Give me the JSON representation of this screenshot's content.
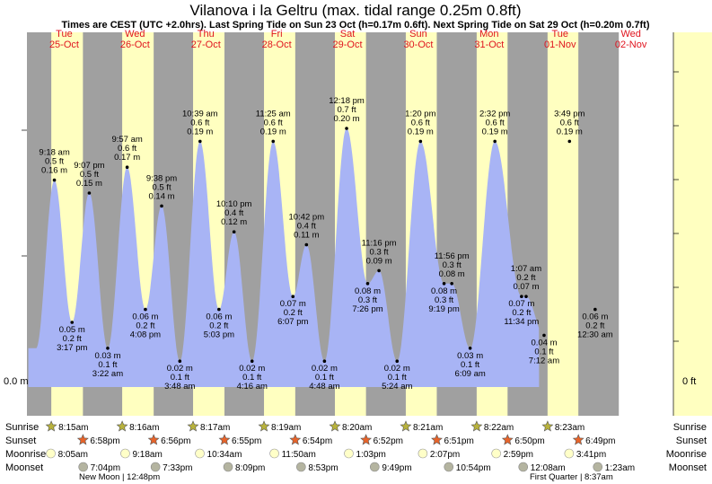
{
  "header": {
    "title": "Vilanova i la Geltru (max. tidal range 0.25m 0.8ft)",
    "subtitle": "Times are CEST (UTC +2.0hrs). Last Spring Tide on Sun 23 Oct (h=0.17m 0.6ft). Next Spring Tide on Sat 29 Oct (h=0.20m 0.7ft)"
  },
  "colors": {
    "night": "#a0a0a0",
    "day": "#ffffc0",
    "tide": "#a8b4f5",
    "day_label": "#e0141e",
    "sunrise_star": "#b8b23c",
    "sunset_star": "#e8642a",
    "moonrise": "#ffffc8",
    "moonset": "#b4b4a0"
  },
  "axis": {
    "left_label": "0.0 m",
    "right_label": "0 ft"
  },
  "chart_data": {
    "type": "area",
    "title": "Vilanova i la Geltru (max. tidal range 0.25m 0.8ft)",
    "days": [
      {
        "dow": "Tue",
        "date": "25-Oct"
      },
      {
        "dow": "Wed",
        "date": "26-Oct"
      },
      {
        "dow": "Thu",
        "date": "27-Oct"
      },
      {
        "dow": "Fri",
        "date": "28-Oct"
      },
      {
        "dow": "Sat",
        "date": "29-Oct"
      },
      {
        "dow": "Sun",
        "date": "30-Oct"
      },
      {
        "dow": "Mon",
        "date": "31-Oct"
      },
      {
        "dow": "Tue",
        "date": "01-Nov"
      },
      {
        "dow": "Wed",
        "date": "02-Nov"
      }
    ],
    "tides": [
      {
        "type": "high",
        "time": "9:18 am",
        "ft": "0.5 ft",
        "m": "0.16 m"
      },
      {
        "type": "low",
        "time": "3:17 pm",
        "ft": "0.2 ft",
        "m": "0.05 m"
      },
      {
        "type": "high",
        "time": "9:07 pm",
        "ft": "0.5 ft",
        "m": "0.15 m"
      },
      {
        "type": "low",
        "time": "3:22 am",
        "ft": "0.1 ft",
        "m": "0.03 m"
      },
      {
        "type": "high",
        "time": "9:57 am",
        "ft": "0.6 ft",
        "m": "0.17 m"
      },
      {
        "type": "low",
        "time": "4:08 pm",
        "ft": "0.2 ft",
        "m": "0.06 m"
      },
      {
        "type": "high",
        "time": "9:38 pm",
        "ft": "0.5 ft",
        "m": "0.14 m"
      },
      {
        "type": "low",
        "time": "3:48 am",
        "ft": "0.1 ft",
        "m": "0.02 m"
      },
      {
        "type": "high",
        "time": "10:39 am",
        "ft": "0.6 ft",
        "m": "0.19 m"
      },
      {
        "type": "low",
        "time": "5:03 pm",
        "ft": "0.2 ft",
        "m": "0.06 m"
      },
      {
        "type": "high",
        "time": "10:10 pm",
        "ft": "0.4 ft",
        "m": "0.12 m"
      },
      {
        "type": "low",
        "time": "4:16 am",
        "ft": "0.1 ft",
        "m": "0.02 m"
      },
      {
        "type": "high",
        "time": "11:25 am",
        "ft": "0.6 ft",
        "m": "0.19 m"
      },
      {
        "type": "low",
        "time": "6:07 pm",
        "ft": "0.2 ft",
        "m": "0.07 m"
      },
      {
        "type": "high",
        "time": "10:42 pm",
        "ft": "0.4 ft",
        "m": "0.11 m"
      },
      {
        "type": "low",
        "time": "4:48 am",
        "ft": "0.1 ft",
        "m": "0.02 m"
      },
      {
        "type": "high",
        "time": "12:18 pm",
        "ft": "0.7 ft",
        "m": "0.20 m"
      },
      {
        "type": "low",
        "time": "7:26 pm",
        "ft": "0.3 ft",
        "m": "0.08 m"
      },
      {
        "type": "high",
        "time": "11:16 pm",
        "ft": "0.3 ft",
        "m": "0.09 m"
      },
      {
        "type": "low",
        "time": "5:24 am",
        "ft": "0.1 ft",
        "m": "0.02 m"
      },
      {
        "type": "high",
        "time": "1:20 pm",
        "ft": "0.6 ft",
        "m": "0.19 m"
      },
      {
        "type": "low",
        "time": "9:19 pm",
        "ft": "0.3 ft",
        "m": "0.08 m"
      },
      {
        "type": "high",
        "time": "11:56 pm",
        "ft": "0.3 ft",
        "m": "0.08 m"
      },
      {
        "type": "low",
        "time": "6:09 am",
        "ft": "0.1 ft",
        "m": "0.03 m"
      },
      {
        "type": "high",
        "time": "2:32 pm",
        "ft": "0.6 ft",
        "m": "0.19 m"
      },
      {
        "type": "low",
        "time": "11:34 pm",
        "ft": "0.2 ft",
        "m": "0.07 m"
      },
      {
        "type": "high",
        "time": "1:07 am",
        "ft": "0.2 ft",
        "m": "0.07 m"
      },
      {
        "type": "low",
        "time": "7:12 am",
        "ft": "0.1 ft",
        "m": "0.04 m"
      },
      {
        "type": "high",
        "time": "3:49 pm",
        "ft": "0.6 ft",
        "m": "0.19 m"
      },
      {
        "type": "low",
        "time": "12:30 am",
        "ft": "0.2 ft",
        "m": "0.06 m"
      }
    ]
  },
  "rows": {
    "sunrise": "Sunrise",
    "sunset": "Sunset",
    "moonrise": "Moonrise",
    "moonset": "Moonset"
  },
  "sunrise_times": [
    "8:15am",
    "8:16am",
    "8:17am",
    "8:19am",
    "8:20am",
    "8:21am",
    "8:22am",
    "8:23am"
  ],
  "sunset_times": [
    "6:58pm",
    "6:56pm",
    "6:55pm",
    "6:54pm",
    "6:52pm",
    "6:51pm",
    "6:50pm",
    "6:49pm"
  ],
  "moonrise_times": [
    "8:05am",
    "9:18am",
    "10:34am",
    "11:50am",
    "1:03pm",
    "2:07pm",
    "2:59pm",
    "3:41pm"
  ],
  "moonset_times": [
    "7:04pm",
    "7:33pm",
    "8:09pm",
    "8:53pm",
    "9:49pm",
    "10:54pm",
    "12:08am",
    "1:23am"
  ],
  "moon_phases": [
    {
      "name": "New Moon",
      "time": "12:48pm"
    },
    {
      "name": "First Quarter",
      "time": "8:37am"
    }
  ]
}
